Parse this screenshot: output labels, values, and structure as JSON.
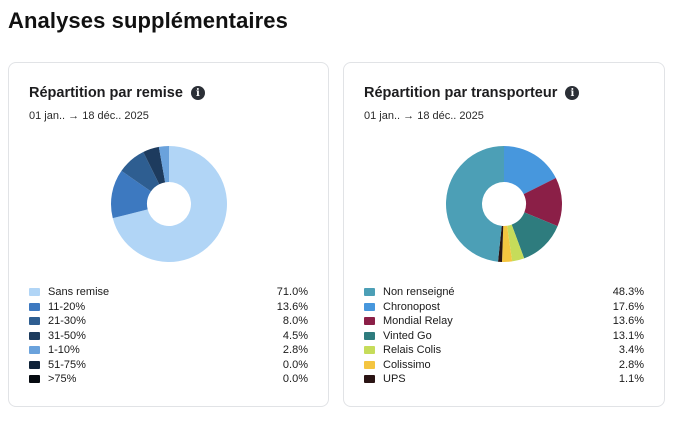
{
  "page": {
    "title": "Analyses supplémentaires"
  },
  "chart_data": [
    {
      "type": "pie",
      "title": "Répartition par remise",
      "subtitle": "01 jan.. → 18 déc.. 2025",
      "start_angle_deg": 0,
      "donut": true,
      "legend_position": "bottom",
      "slices": [
        {
          "label": "Sans remise",
          "value": 71.0,
          "display": "71.0%",
          "color": "#b1d5f6"
        },
        {
          "label": "11-20%",
          "value": 13.6,
          "display": "13.6%",
          "color": "#3d79c0"
        },
        {
          "label": "21-30%",
          "value": 8.0,
          "display": "8.0%",
          "color": "#2e5e91"
        },
        {
          "label": "31-50%",
          "value": 4.5,
          "display": "4.5%",
          "color": "#1d3b5e"
        },
        {
          "label": "1-10%",
          "value": 2.8,
          "display": "2.8%",
          "color": "#6aa2dc"
        },
        {
          "label": "51-75%",
          "value": 0.0,
          "display": "0.0%",
          "color": "#0f2238"
        },
        {
          "label": ">75%",
          "value": 0.0,
          "display": "0.0%",
          "color": "#050a10"
        }
      ]
    },
    {
      "type": "pie",
      "title": "Répartition par transporteur",
      "subtitle": "01 jan.. → 18 déc.. 2025",
      "start_angle_deg": 0,
      "donut": true,
      "legend_position": "bottom",
      "slices": [
        {
          "label": "Chronopost",
          "value": 17.6,
          "display": "17.6%",
          "color": "#4797dd"
        },
        {
          "label": "Mondial Relay",
          "value": 13.6,
          "display": "13.6%",
          "color": "#8b1f47"
        },
        {
          "label": "Vinted Go",
          "value": 13.1,
          "display": "13.1%",
          "color": "#2e7c7e"
        },
        {
          "label": "Relais Colis",
          "value": 3.4,
          "display": "3.4%",
          "color": "#c6dc5a"
        },
        {
          "label": "Colissimo",
          "value": 2.8,
          "display": "2.8%",
          "color": "#f4c540"
        },
        {
          "label": "UPS",
          "value": 1.1,
          "display": "1.1%",
          "color": "#2a1414"
        },
        {
          "label": "Non renseigné",
          "value": 48.3,
          "display": "48.3%",
          "color": "#4c9fb6"
        }
      ],
      "legend_order": [
        "Non renseigné",
        "Chronopost",
        "Mondial Relay",
        "Vinted Go",
        "Relais Colis",
        "Colissimo",
        "UPS"
      ]
    }
  ]
}
